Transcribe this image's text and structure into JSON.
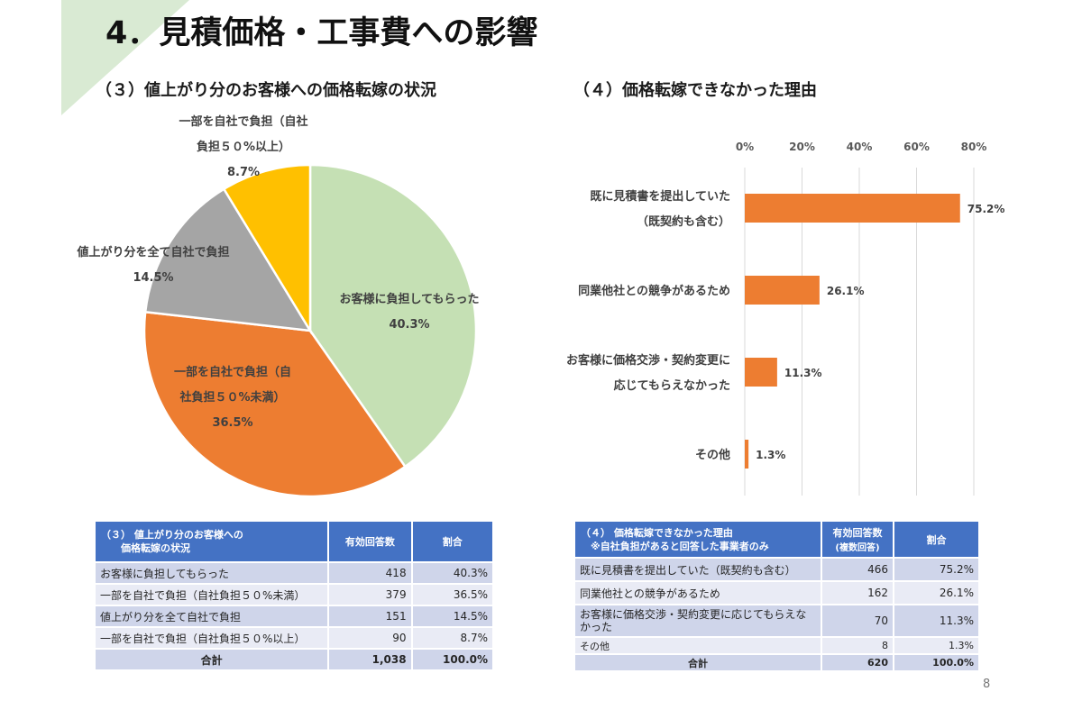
{
  "slide": {
    "title": "4．見積価格・工事費への影響",
    "page_number": "8",
    "accent_color": "#d9ead3"
  },
  "chart_data": [
    {
      "type": "pie",
      "title": "（３）値上がり分のお客様への価格転嫁の状況",
      "slices": [
        {
          "label_lines": [
            "お客様に負担してもらった"
          ],
          "value": 40.3,
          "value_label": "40.3%",
          "color": "#c5e0b4"
        },
        {
          "label_lines": [
            "一部を自社で負担（自",
            "社負担５０%未満）"
          ],
          "value": 36.5,
          "value_label": "36.5%",
          "color": "#ed7d31"
        },
        {
          "label_lines": [
            "値上がり分を全て自社で負担"
          ],
          "value": 14.5,
          "value_label": "14.5%",
          "color": "#a5a5a5"
        },
        {
          "label_lines": [
            "一部を自社で負担（自社",
            "負担５０%以上）"
          ],
          "value": 8.7,
          "value_label": "8.7%",
          "color": "#ffc000"
        }
      ]
    },
    {
      "type": "bar",
      "orientation": "horizontal",
      "title": "（４）価格転嫁できなかった理由",
      "categories": [
        [
          "既に見積書を提出していた",
          "（既契約も含む）"
        ],
        [
          "同業他社との競争があるため"
        ],
        [
          "お客様に価格交渉・契約変更に",
          "応じてもらえなかった"
        ],
        [
          "その他"
        ]
      ],
      "values": [
        75.2,
        26.1,
        11.3,
        1.3
      ],
      "value_labels": [
        "75.2%",
        "26.1%",
        "11.3%",
        "1.3%"
      ],
      "x_ticks": [
        0,
        20,
        40,
        60,
        80
      ],
      "x_tick_labels": [
        "0%",
        "20%",
        "40%",
        "60%",
        "80%"
      ],
      "xlim": [
        0,
        80
      ],
      "axis_position": "top",
      "grid": true,
      "bar_color": "#ed7d31"
    }
  ],
  "table_left": {
    "headers": [
      "（３） 値上がり分のお客様への\n　　価格転嫁の状況",
      "有効回答数",
      "割合"
    ],
    "rows": [
      [
        "お客様に負担してもらった",
        "418",
        "40.3%"
      ],
      [
        "一部を自社で負担（自社負担５０%未満）",
        "379",
        "36.5%"
      ],
      [
        "値上がり分を全て自社で負担",
        "151",
        "14.5%"
      ],
      [
        "一部を自社で負担（自社負担５０%以上）",
        "90",
        "8.7%"
      ]
    ],
    "total": [
      "合計",
      "1,038",
      "100.0%"
    ]
  },
  "table_right": {
    "headers": [
      "（４） 価格転嫁できなかった理由\n　※自社負担があると回答した事業者のみ",
      "有効回答数",
      "割合"
    ],
    "header_note": "(複数回答)",
    "rows": [
      [
        "既に見積書を提出していた（既契約も含む）",
        "466",
        "75.2%"
      ],
      [
        "同業他社との競争があるため",
        "162",
        "26.1%"
      ],
      [
        "お客様に価格交渉・契約変更に応じてもらえなかった",
        "70",
        "11.3%"
      ],
      [
        "その他",
        "8",
        "1.3%"
      ]
    ],
    "total": [
      "合計",
      "620",
      "100.0%"
    ]
  }
}
